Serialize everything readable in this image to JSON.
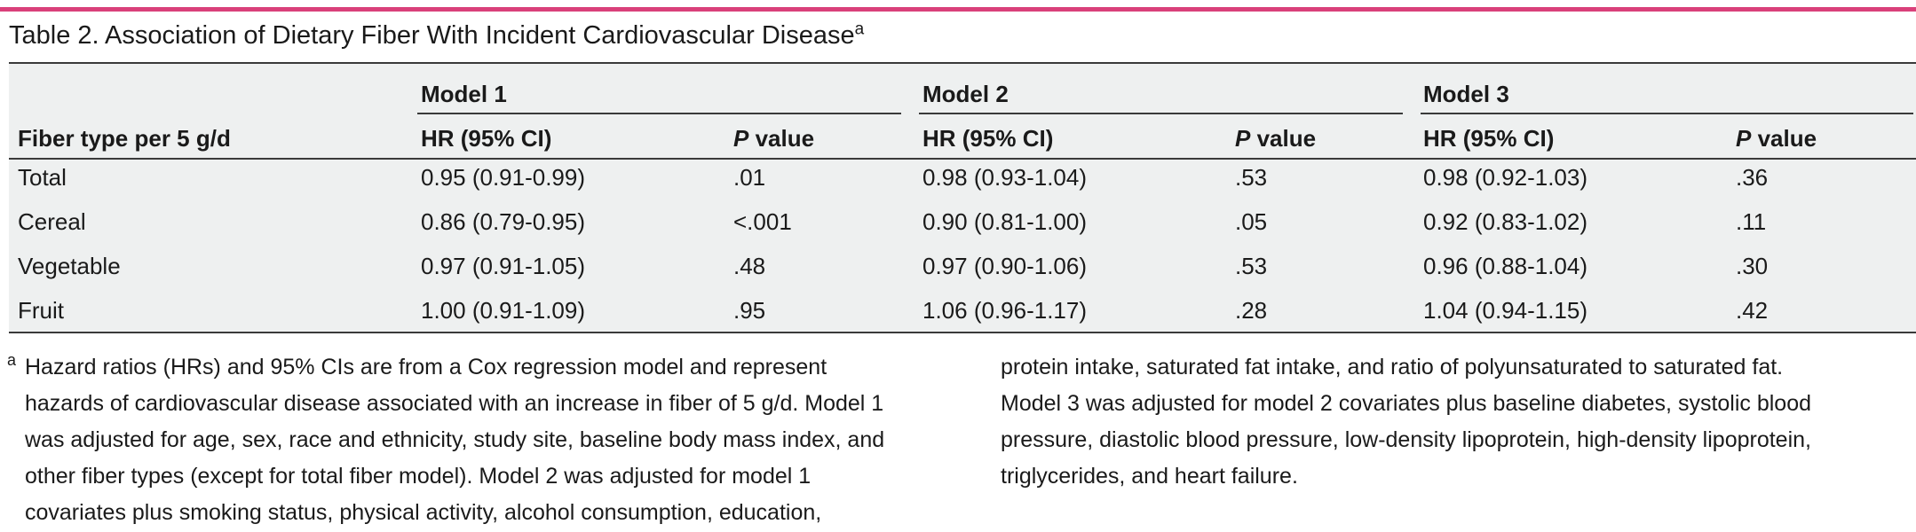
{
  "title": "Table 2. Association of Dietary Fiber With Incident Cardiovascular Disease",
  "title_footnote_mark": "a",
  "accent_color": "#d9407a",
  "table": {
    "first_col_header": "Fiber type per 5 g/d",
    "models": [
      "Model 1",
      "Model 2",
      "Model 3"
    ],
    "hr_header": "HR (95% CI)",
    "p_header_italic": "P",
    "p_header_rest": " value",
    "rows": [
      {
        "label": "Total",
        "cells": [
          "0.95 (0.91-0.99)",
          ".01",
          "0.98 (0.93-1.04)",
          ".53",
          "0.98 (0.92-1.03)",
          ".36"
        ]
      },
      {
        "label": "Cereal",
        "cells": [
          "0.86 (0.79-0.95)",
          "<.001",
          "0.90 (0.81-1.00)",
          ".05",
          "0.92 (0.83-1.02)",
          ".11"
        ]
      },
      {
        "label": "Vegetable",
        "cells": [
          "0.97 (0.91-1.05)",
          ".48",
          "0.97 (0.90-1.06)",
          ".53",
          "0.96 (0.88-1.04)",
          ".30"
        ]
      },
      {
        "label": "Fruit",
        "cells": [
          "1.00 (0.91-1.09)",
          ".95",
          "1.06 (0.96-1.17)",
          ".28",
          "1.04 (0.94-1.15)",
          ".42"
        ]
      }
    ]
  },
  "footnote": {
    "mark": "a",
    "left_lines": [
      "Hazard ratios (HRs) and 95% CIs are from a Cox regression model and represent",
      "hazards of cardiovascular disease associated with an increase in fiber of 5 g/d. Model 1",
      "was adjusted for age, sex, race and ethnicity, study site, baseline body mass index, and",
      "other fiber types (except for total fiber model). Model 2 was adjusted for model 1",
      "covariates plus smoking status, physical activity, alcohol consumption, education,"
    ],
    "right_lines": [
      "protein intake, saturated fat intake, and ratio of polyunsaturated to saturated fat.",
      "Model 3 was adjusted for model 2 covariates plus baseline diabetes, systolic blood",
      "pressure, diastolic blood pressure, low-density lipoprotein, high-density lipoprotein,",
      "triglycerides, and heart failure."
    ]
  }
}
